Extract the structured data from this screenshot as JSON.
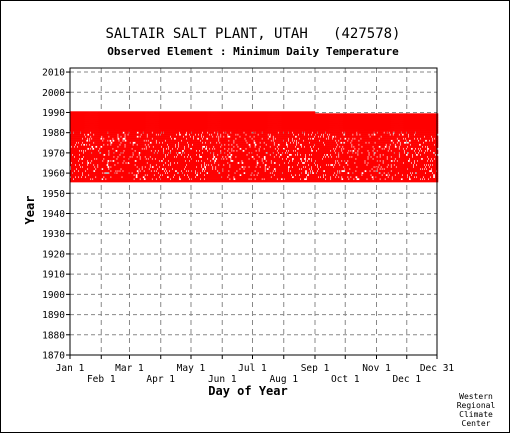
{
  "chart_data": {
    "type": "scatter",
    "title": "SALTAIR SALT PLANT, UTAH   (427578)",
    "subtitle": "Observed Element : Minimum Daily Temperature",
    "xlabel": "Day of Year",
    "ylabel": "Year",
    "xlim": [
      1,
      365
    ],
    "ylim": [
      1870,
      2012
    ],
    "x_ticks_top_row": [
      {
        "label": "Jan 1",
        "day": 1
      },
      {
        "label": "Mar 1",
        "day": 60
      },
      {
        "label": "May 1",
        "day": 121
      },
      {
        "label": "Jul 1",
        "day": 182
      },
      {
        "label": "Sep 1",
        "day": 244
      },
      {
        "label": "Nov 1",
        "day": 305
      },
      {
        "label": "Dec 31",
        "day": 365
      }
    ],
    "x_ticks_bottom_row": [
      {
        "label": "Feb 1",
        "day": 32
      },
      {
        "label": "Apr 1",
        "day": 91
      },
      {
        "label": "Jun 1",
        "day": 152
      },
      {
        "label": "Aug 1",
        "day": 213
      },
      {
        "label": "Oct 1",
        "day": 274
      },
      {
        "label": "Dec 1",
        "day": 335
      }
    ],
    "y_ticks": [
      1870,
      1880,
      1890,
      1900,
      1910,
      1920,
      1930,
      1940,
      1950,
      1960,
      1970,
      1980,
      1990,
      2000,
      2010
    ],
    "grid": true,
    "series": [
      {
        "color": "#ff0000",
        "year_start": 1956,
        "year_end": 1990,
        "sparse_year_min": 1957,
        "sparse_year_max": 1980,
        "last_year_after_aug": 1989
      }
    ],
    "credit": [
      "Western",
      "Regional",
      "Climate",
      "Center"
    ]
  }
}
